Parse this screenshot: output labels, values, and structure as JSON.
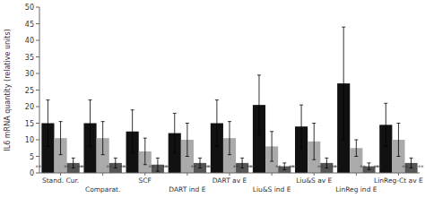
{
  "chart_data": {
    "type": "bar",
    "categories": [
      "Stand. Cur.",
      "Comparat.",
      "SCF",
      "DART ind E",
      "DART av E",
      "Liu&S ind E",
      "Liu&S av E",
      "LinReg ind E",
      "LinReg-Ct av E"
    ],
    "series": [
      {
        "color": "#111111",
        "values": [
          15.0,
          15.0,
          12.5,
          12.0,
          15.0,
          20.5,
          14.0,
          27.0,
          14.5
        ],
        "errors": [
          7.0,
          7.0,
          6.5,
          6.0,
          7.0,
          9.0,
          6.5,
          17.0,
          6.5
        ]
      },
      {
        "color": "#aaaaaa",
        "values": [
          10.5,
          10.5,
          6.5,
          10.0,
          10.5,
          8.0,
          9.5,
          7.5,
          10.0
        ],
        "errors": [
          5.0,
          5.0,
          4.0,
          5.0,
          5.0,
          4.5,
          5.5,
          2.5,
          5.0
        ]
      },
      {
        "color": "#555555",
        "values": [
          3.0,
          3.0,
          2.5,
          3.0,
          3.0,
          2.0,
          3.0,
          2.0,
          3.0
        ],
        "errors": [
          1.5,
          1.5,
          2.0,
          1.5,
          1.5,
          1.0,
          1.5,
          1.0,
          1.5
        ]
      }
    ],
    "y_label": "IL6 mRNA quantity (relative units)",
    "ylim": [
      0,
      50
    ],
    "yticks": [
      0,
      5,
      10,
      15,
      20,
      25,
      30,
      35,
      40,
      45,
      50
    ],
    "grid": false,
    "annotations": [
      {
        "text": "**",
        "category": "Stand. Cur.",
        "y": 1.8
      },
      {
        "text": "**",
        "category": "Stand. Cur.",
        "y": 1.8
      },
      {
        "text": "**",
        "category": "Stand. Cur.",
        "y": 1.8
      },
      {
        "text": "**",
        "category": "Comparat.",
        "y": 1.8
      },
      {
        "text": "**",
        "category": "Comparat.",
        "y": 1.8
      },
      {
        "text": "**",
        "category": "Comparat.",
        "y": 1.8
      },
      {
        "text": "**",
        "category": "SCF",
        "y": 1.8
      },
      {
        "text": "**",
        "category": "SCF",
        "y": 1.8
      },
      {
        "text": "**",
        "category": "SCF",
        "y": 1.8
      },
      {
        "text": "**",
        "category": "DART ind E",
        "y": 1.8
      },
      {
        "text": "**",
        "category": "DART ind E",
        "y": 1.8
      },
      {
        "text": "**",
        "category": "DART ind E",
        "y": 1.8
      },
      {
        "text": "**",
        "category": "DART av E",
        "y": 1.8
      },
      {
        "text": "**",
        "category": "DART av E",
        "y": 1.8
      },
      {
        "text": "**",
        "category": "DART av E",
        "y": 1.8
      },
      {
        "text": "**",
        "category": "Liu&S ind E",
        "y": 1.8
      },
      {
        "text": "**",
        "category": "Liu&S ind E",
        "y": 1.8
      },
      {
        "text": "**",
        "category": "Liu&S ind E",
        "y": 1.8
      },
      {
        "text": "**",
        "category": "Liu&S av E",
        "y": 1.8
      },
      {
        "text": "**",
        "category": "Liu&S av E",
        "y": 1.8
      },
      {
        "text": "**",
        "category": "Liu&S av E",
        "y": 1.8
      },
      {
        "text": "**",
        "category": "LinReg ind E",
        "y": 1.8
      },
      {
        "text": "**",
        "category": "LinReg ind E",
        "y": 1.8
      },
      {
        "text": "**",
        "category": "LinReg ind E",
        "y": 1.8
      },
      {
        "text": "**",
        "category": "LinReg-Ct av E",
        "y": 1.8
      },
      {
        "text": "**",
        "category": "LinReg-Ct av E",
        "y": 1.8
      },
      {
        "text": "**",
        "category": "LinReg-Ct av E",
        "y": 1.8
      }
    ]
  }
}
